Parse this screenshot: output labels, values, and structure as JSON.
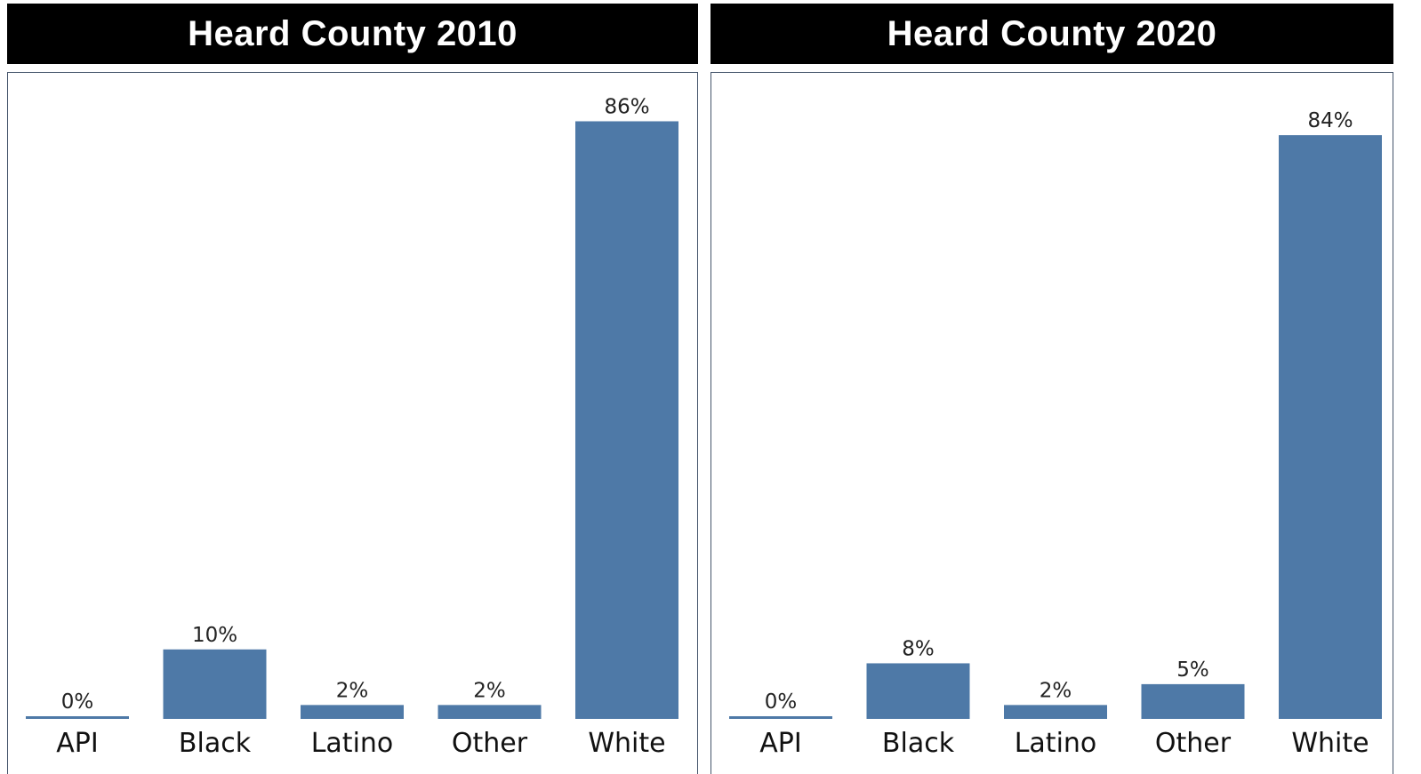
{
  "chart_data": [
    {
      "type": "bar",
      "title": "Heard County 2010",
      "categories": [
        "API",
        "Black",
        "Latino",
        "Other",
        "White"
      ],
      "values": [
        0,
        10,
        2,
        2,
        86
      ],
      "value_labels": [
        "0%",
        "10%",
        "2%",
        "2%",
        "86%"
      ],
      "ylim": [
        0,
        100
      ],
      "grid": false,
      "bar_color": "#4e79a7"
    },
    {
      "type": "bar",
      "title": "Heard County 2020",
      "categories": [
        "API",
        "Black",
        "Latino",
        "Other",
        "White"
      ],
      "values": [
        0,
        8,
        2,
        5,
        84
      ],
      "value_labels": [
        "0%",
        "8%",
        "2%",
        "5%",
        "84%"
      ],
      "ylim": [
        0,
        100
      ],
      "grid": false,
      "bar_color": "#4e79a7"
    }
  ]
}
